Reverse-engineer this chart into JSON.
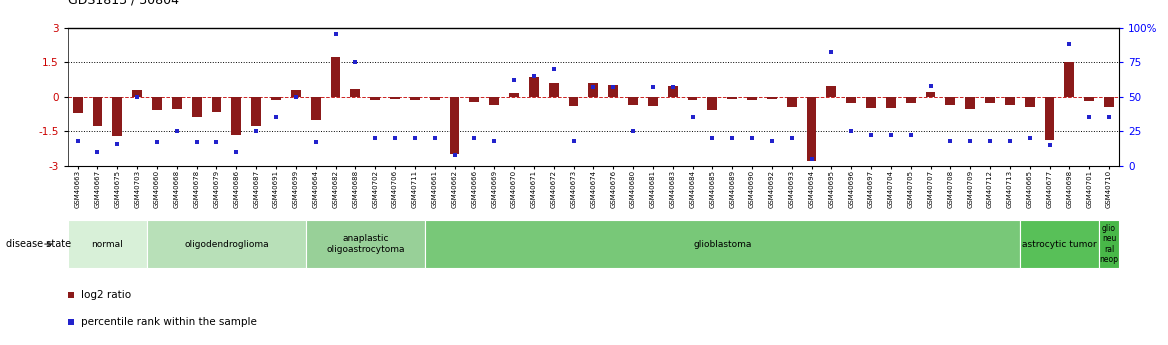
{
  "title": "GDS1813 / 30804",
  "samples": [
    "GSM40663",
    "GSM40667",
    "GSM40675",
    "GSM40703",
    "GSM40660",
    "GSM40668",
    "GSM40678",
    "GSM40679",
    "GSM40686",
    "GSM40687",
    "GSM40691",
    "GSM40699",
    "GSM40664",
    "GSM40682",
    "GSM40688",
    "GSM40702",
    "GSM40706",
    "GSM40711",
    "GSM40661",
    "GSM40662",
    "GSM40666",
    "GSM40669",
    "GSM40670",
    "GSM40671",
    "GSM40672",
    "GSM40673",
    "GSM40674",
    "GSM40676",
    "GSM40680",
    "GSM40681",
    "GSM40683",
    "GSM40684",
    "GSM40685",
    "GSM40689",
    "GSM40690",
    "GSM40692",
    "GSM40693",
    "GSM40694",
    "GSM40695",
    "GSM40696",
    "GSM40697",
    "GSM40704",
    "GSM40705",
    "GSM40707",
    "GSM40708",
    "GSM40709",
    "GSM40712",
    "GSM40713",
    "GSM40665",
    "GSM40677",
    "GSM40698",
    "GSM40701",
    "GSM40710"
  ],
  "log2_ratio": [
    -0.7,
    -1.3,
    -1.7,
    0.3,
    -0.6,
    -0.55,
    -0.9,
    -0.65,
    -1.65,
    -1.3,
    -0.15,
    0.3,
    -1.0,
    1.7,
    0.35,
    -0.15,
    -0.1,
    -0.15,
    -0.15,
    -2.5,
    -0.25,
    -0.35,
    0.15,
    0.85,
    0.6,
    -0.4,
    0.6,
    0.5,
    -0.35,
    -0.4,
    0.45,
    -0.15,
    -0.6,
    -0.1,
    -0.15,
    -0.1,
    -0.45,
    -2.8,
    0.45,
    -0.3,
    -0.5,
    -0.5,
    -0.3,
    0.2,
    -0.35,
    -0.55,
    -0.3,
    -0.35,
    -0.45,
    -1.9,
    1.5,
    -0.2,
    -0.45
  ],
  "percentile": [
    18,
    10,
    16,
    50,
    17,
    25,
    17,
    17,
    10,
    25,
    35,
    50,
    17,
    95,
    75,
    20,
    20,
    20,
    20,
    8,
    20,
    18,
    62,
    65,
    70,
    18,
    57,
    57,
    25,
    57,
    57,
    35,
    20,
    20,
    20,
    18,
    20,
    5,
    82,
    25,
    22,
    22,
    22,
    58,
    18,
    18,
    18,
    18,
    20,
    15,
    88,
    35,
    35
  ],
  "disease_groups": [
    {
      "label": "normal",
      "start": 0,
      "end": 3,
      "color": "#d8f0d8"
    },
    {
      "label": "oligodendroglioma",
      "start": 4,
      "end": 11,
      "color": "#b8e0b8"
    },
    {
      "label": "anaplastic\noligoastrocytoma",
      "start": 12,
      "end": 17,
      "color": "#98d098"
    },
    {
      "label": "glioblastoma",
      "start": 18,
      "end": 47,
      "color": "#78c878"
    },
    {
      "label": "astrocytic tumor",
      "start": 48,
      "end": 51,
      "color": "#58c058"
    },
    {
      "label": "glio\nneu\nral\nneop",
      "start": 52,
      "end": 52,
      "color": "#48b848"
    }
  ],
  "ylim_left": [
    -3,
    3
  ],
  "ylim_right": [
    0,
    100
  ],
  "yticks_left": [
    -3,
    -1.5,
    0,
    1.5,
    3
  ],
  "yticks_right": [
    0,
    25,
    50,
    75,
    100
  ],
  "bar_color": "#8b1a1a",
  "dot_color": "#2222cc",
  "hline_color": "#cc2222",
  "bg_color": "#ffffff"
}
